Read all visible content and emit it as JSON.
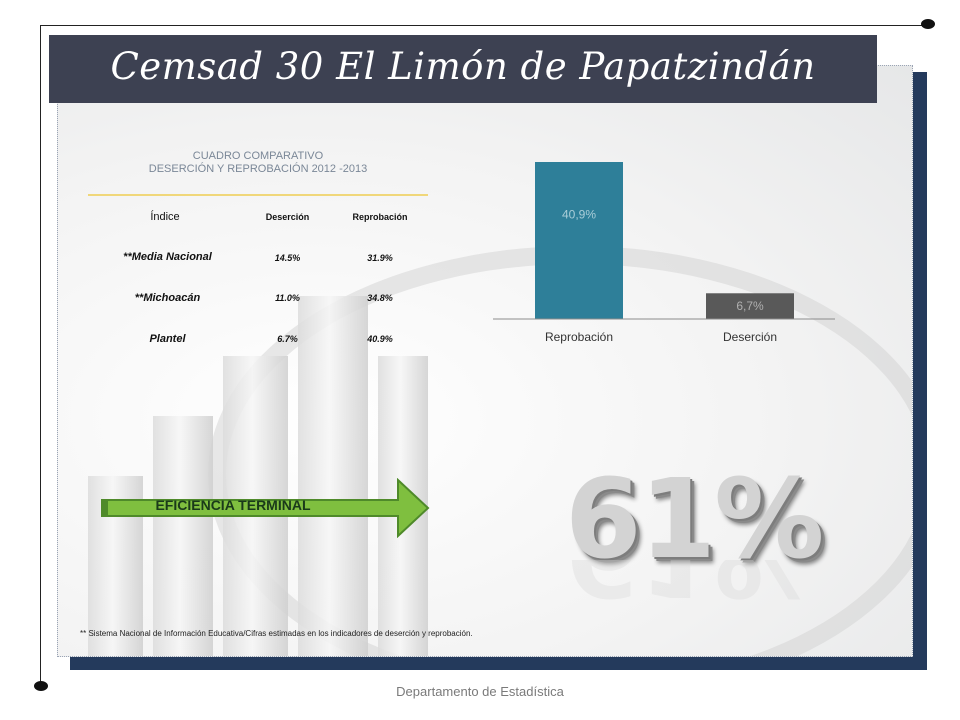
{
  "title": "Cemsad 30 El Limón de Papatzindán",
  "table": {
    "title_line1": "CUADRO COMPARATIVO",
    "title_line2": "DESERCIÓN Y REPROBACIÓN  2012 -2013",
    "headers": [
      "Índice",
      "Deserción",
      "Reprobación"
    ],
    "rows": [
      {
        "label": "**Media Nacional",
        "desercion": "14.5%",
        "reprobacion": "31.9%"
      },
      {
        "label": "**Michoacán",
        "desercion": "11.0%",
        "reprobacion": "34.8%"
      },
      {
        "label": "Plantel",
        "desercion": "6.7%",
        "reprobacion": "40.9%"
      }
    ]
  },
  "chart_data": {
    "type": "bar",
    "categories": [
      "Reprobación",
      "Deserción"
    ],
    "values": [
      40.9,
      6.7
    ],
    "data_labels": [
      "40,9%",
      "6,7%"
    ],
    "colors": [
      "#2e7f99",
      "#595959"
    ],
    "label_colors": [
      "#a9cdd8",
      "#b0b0b0"
    ],
    "ylim": [
      0,
      40.9
    ],
    "grid": false
  },
  "arrow": {
    "label": "EFICIENCIA TERMINAL",
    "color": "#7fbf3f"
  },
  "efficiency": {
    "value": "61%"
  },
  "footnote": "** Sistema Nacional de Información Educativa/Cifras estimadas en los indicadores de deserción y reprobación.",
  "footer": "Departamento de Estadística"
}
